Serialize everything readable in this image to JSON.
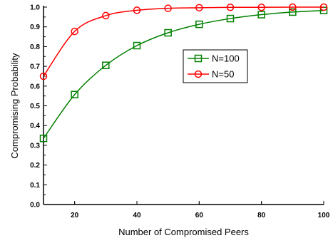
{
  "chart_data": {
    "type": "line",
    "title": "",
    "xlabel": "Number of Compromised Peers",
    "ylabel": "Compromising Probability",
    "xlim": [
      10,
      100
    ],
    "ylim": [
      0.0,
      1.0
    ],
    "x_ticks": [
      20,
      40,
      60,
      80,
      100
    ],
    "x_tick_labels": [
      "20",
      "40",
      "60",
      "80",
      "100"
    ],
    "y_ticks": [
      0.0,
      0.1,
      0.2,
      0.3,
      0.4,
      0.5,
      0.6,
      0.7,
      0.8,
      0.9,
      1.0
    ],
    "y_tick_labels": [
      "0.0",
      "0.1",
      "0.2",
      "0.3",
      "0.4",
      "0.5",
      "0.6",
      "0.7",
      "0.8",
      "0.9",
      "1.0"
    ],
    "grid": false,
    "legend_position": "center-right",
    "x": [
      10,
      20,
      30,
      40,
      50,
      60,
      70,
      80,
      90,
      100
    ],
    "series": [
      {
        "name": "N=100",
        "marker": "square",
        "color": "#008000",
        "values": [
          0.335,
          0.557,
          0.705,
          0.805,
          0.87,
          0.913,
          0.942,
          0.962,
          0.975,
          0.983
        ]
      },
      {
        "name": "N=50",
        "marker": "circle",
        "color": "#ff0000",
        "values": [
          0.65,
          0.877,
          0.957,
          0.984,
          0.994,
          0.997,
          0.999,
          0.999,
          1.0,
          1.0
        ]
      }
    ]
  }
}
